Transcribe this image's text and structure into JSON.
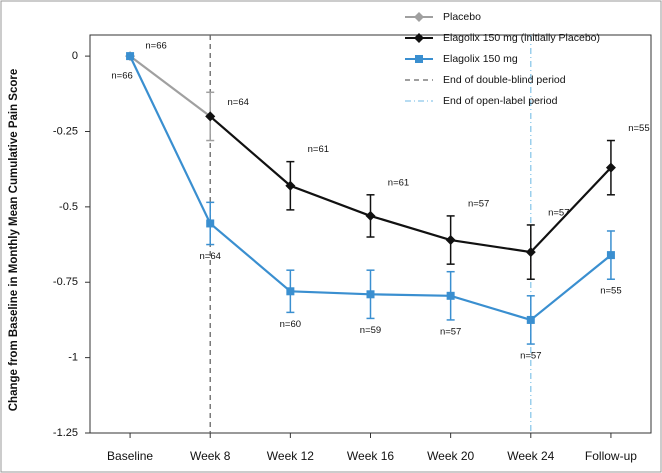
{
  "chart_data": {
    "type": "line",
    "y_label": "Change from Baseline in Monthly Mean Cumulative Pain Score",
    "categories": [
      "Baseline",
      "Week 8",
      "Week 12",
      "Week 16",
      "Week 20",
      "Week 24",
      "Follow-up"
    ],
    "ylim": [
      -1.25,
      0.07
    ],
    "yticks": [
      0,
      -0.25,
      -0.5,
      -0.75,
      -1,
      -1.25
    ],
    "series": [
      {
        "name": "Placebo",
        "color": "#a0a0a0",
        "marker": "diamond",
        "values": [
          0,
          -0.2,
          null,
          null,
          null,
          null,
          null
        ],
        "errors": [
          null,
          0.08,
          null,
          null,
          null,
          null,
          null
        ],
        "n_labels": [
          "n=66",
          "n=64",
          null,
          null,
          null,
          null,
          null
        ]
      },
      {
        "name": "Elagolix 150 mg (initially Placebo)",
        "color": "#111111",
        "marker": "diamond",
        "values": [
          null,
          -0.2,
          -0.43,
          -0.53,
          -0.61,
          -0.65,
          -0.37
        ],
        "errors": [
          null,
          null,
          0.08,
          0.07,
          0.08,
          0.09,
          0.09
        ],
        "n_labels": [
          null,
          null,
          "n=61",
          "n=61",
          "n=57",
          "n=57",
          "n=55"
        ]
      },
      {
        "name": "Elagolix 150 mg",
        "color": "#3a8fd0",
        "marker": "square",
        "values": [
          0,
          -0.555,
          -0.78,
          -0.79,
          -0.795,
          -0.875,
          -0.66
        ],
        "errors": [
          null,
          0.07,
          0.07,
          0.08,
          0.08,
          0.08,
          0.08
        ],
        "n_labels": [
          "n=66",
          "n=64",
          "n=60",
          "n=59",
          "n=57",
          "n=57",
          "n=55"
        ]
      }
    ],
    "reference_lines": [
      {
        "name": "End of double-blind period",
        "at": "Week 8",
        "color": "#666666",
        "dash": "5,4"
      },
      {
        "name": "End of open-label period",
        "at": "Week 24",
        "color": "#8cc8ea",
        "dash": "6,3,1,3"
      }
    ]
  }
}
